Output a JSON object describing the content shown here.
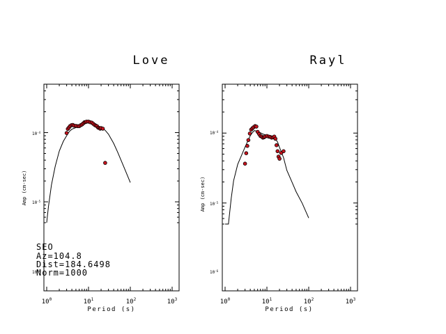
{
  "chart_data": [
    {
      "type": "line+scatter",
      "title": "Love",
      "xlabel": "Period (s)",
      "ylabel": "Amp (cm-sec)",
      "x_scale": "log",
      "y_scale": "log",
      "xlim": [
        1,
        1000
      ],
      "ylim": [
        5e-06,
        0.0005
      ],
      "x_tick_labels": [
        "10^0",
        "10^1",
        "10^2",
        "10^3"
      ],
      "y_tick_labels": [
        "10^-4",
        "10^-5",
        "10^-6"
      ],
      "annotations": [
        "SEO",
        "Az=104.8",
        "Dist=184.6498",
        "Norm=1000"
      ],
      "series": [
        {
          "kind": "line",
          "x": [
            1.0,
            1.1,
            1.3,
            1.6,
            2.0,
            2.5,
            3.0,
            3.5,
            4.0,
            5.0,
            6.0,
            7.0,
            8.0,
            10.0,
            12.0,
            15.0,
            20.0,
            25.0,
            30.0,
            40.0,
            50.0,
            70.0,
            100.0
          ],
          "y": [
            5e-06,
            8.5e-06,
            1.75e-05,
            3.25e-05,
            5.42e-05,
            7.5e-05,
            9e-05,
            0.000104,
            0.000112,
            0.000118,
            0.000121,
            0.000127,
            0.000133,
            0.000142,
            0.00014,
            0.000128,
            0.000118,
            0.000108,
            9.5e-05,
            7e-05,
            5.2e-05,
            3.2e-05,
            1.9e-05
          ]
        },
        {
          "kind": "points",
          "x": [
            3.0,
            3.2,
            3.4,
            3.6,
            3.9,
            4.2,
            4.5,
            5.0,
            5.5,
            6.0,
            6.5,
            7.0,
            7.5,
            8.0,
            8.5,
            9.0,
            10.0,
            11.0,
            12.0,
            13.0,
            14.0,
            15.0,
            16.0,
            17.0,
            18.0,
            19.0,
            20.0,
            22.0,
            25.0
          ],
          "y": [
            9.85e-05,
            0.000113,
            0.000118,
            0.000124,
            0.000128,
            0.000129,
            0.000126,
            0.000125,
            0.000124,
            0.000124,
            0.000128,
            0.000131,
            0.000136,
            0.000141,
            0.000142,
            0.000144,
            0.000144,
            0.000141,
            0.000139,
            0.000134,
            0.000129,
            0.000126,
            0.000124,
            0.000118,
            0.000117,
            0.000114,
            0.000116,
            0.000114,
            3.65e-05
          ]
        }
      ]
    },
    {
      "type": "line+scatter",
      "title": "Rayl",
      "xlabel": "Period (s)",
      "ylabel": "Amp (cm-sec)",
      "x_scale": "log",
      "y_scale": "log",
      "xlim": [
        1,
        1000
      ],
      "ylim": [
        5e-06,
        0.0005
      ],
      "x_tick_labels": [
        "10^0",
        "10^1",
        "10^2",
        "10^3"
      ],
      "y_tick_labels": [
        "10^-4",
        "10^-5",
        "10^-6"
      ],
      "series": [
        {
          "kind": "line",
          "x": [
            1.0,
            1.2,
            1.4,
            1.6,
            2.0,
            2.5,
            3.0,
            3.5,
            4.0,
            4.5,
            5.0,
            6.0,
            7.0,
            8.0,
            10.0,
            12.0,
            14.0,
            16.0,
            18.0,
            20.0,
            25.0,
            30.0,
            40.0,
            50.0,
            70.0,
            100.0
          ],
          "y": [
            5e-06,
            5e-06,
            1.17e-05,
            2.08e-05,
            3.57e-05,
            4.88e-05,
            6.3e-05,
            7.7e-05,
            9.15e-05,
            0.0001015,
            0.0001085,
            0.000106,
            0.000101,
            9.7e-05,
            9.3e-05,
            8.85e-05,
            8.5e-05,
            8.25e-05,
            7.45e-05,
            6.25e-05,
            4.45e-05,
            2.94e-05,
            1.98e-05,
            1.45e-05,
            9.9e-06,
            6.1e-06
          ]
        },
        {
          "kind": "points",
          "x": [
            3.0,
            3.2,
            3.4,
            3.6,
            3.9,
            4.2,
            4.5,
            4.8,
            5.2,
            5.6,
            6.0,
            6.5,
            7.0,
            7.5,
            8.0,
            8.5,
            9.0,
            10.0,
            11.0,
            12.0,
            13.0,
            14.0,
            15.0,
            16.0,
            17.0,
            18.0,
            19.0,
            20.0,
            22.0,
            25.0
          ],
          "y": [
            3.65e-05,
            5.15e-05,
            6.55e-05,
            7.95e-05,
            9.85e-05,
            0.000112,
            0.000117,
            0.000121,
            0.000126,
            0.000124,
            0.000104,
            9.7e-05,
            9.1e-05,
            8.9e-05,
            8.6e-05,
            8.7e-05,
            8.9e-05,
            9.1e-05,
            8.9e-05,
            8.8e-05,
            8.6e-05,
            8.7e-05,
            8.9e-05,
            8.3e-05,
            6.7e-05,
            5.5e-05,
            4.6e-05,
            4.3e-05,
            5.2e-05,
            5.5e-05
          ]
        }
      ]
    }
  ]
}
